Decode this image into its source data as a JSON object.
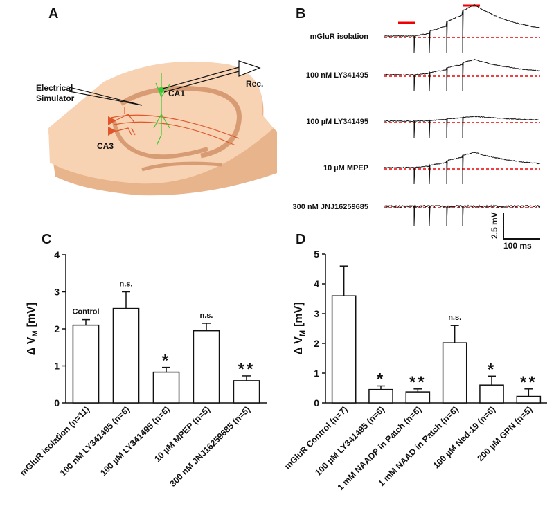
{
  "panel_labels": [
    "A",
    "B",
    "C",
    "D"
  ],
  "panel_a": {
    "stimulator": [
      "Electrical",
      "Simulator"
    ],
    "recording": "Rec.",
    "regions": [
      "CA1",
      "CA3"
    ]
  },
  "panel_b": {
    "traces": [
      "mGluR isolation",
      "100 nM LY341495",
      "100 µM LY341495",
      "10 µM MPEP",
      "300 nM JNJ16259685"
    ],
    "scale_bar": [
      "2.5 mV",
      "100 ms"
    ]
  },
  "chart_data": [
    {
      "type": "bar",
      "ylabel": [
        "Δ V",
        "M",
        "[mV]"
      ],
      "categories": [
        "mGluR isolation (n=11)",
        "100 nM LY341495 (n=6)",
        "100 µM LY341495 (n=6)",
        "10 µM MPEP (n=5)",
        "300 nM JNJ16259685 (n=5)"
      ],
      "values": [
        2.1,
        2.55,
        0.83,
        1.95,
        0.6
      ],
      "errors": [
        0.15,
        0.45,
        0.13,
        0.2,
        0.13
      ],
      "annotations": [
        "Control",
        "n.s.",
        "*",
        "n.s.",
        "**"
      ],
      "color": "#ffffff",
      "ylim": [
        0,
        4
      ],
      "yticks": [
        0,
        1,
        2,
        3,
        4
      ]
    },
    {
      "type": "bar",
      "ylabel": [
        "Δ V",
        "M",
        "[mV]"
      ],
      "categories": [
        "mGluR Control (n=7)",
        "100 µM LY341495 (n=6)",
        "1 mM NAADP in Patch (n=6)",
        "1 mM NAAD in Patch (n=6)",
        "100 µM Ned-19 (n=6)",
        "200 µM GPN (n=5)"
      ],
      "values": [
        3.6,
        0.45,
        0.37,
        2.02,
        0.6,
        0.22
      ],
      "errors": [
        1.0,
        0.12,
        0.1,
        0.58,
        0.3,
        0.25
      ],
      "annotations": [
        null,
        "*",
        "**",
        "n.s.",
        "*",
        "**"
      ],
      "color": "#ffffff",
      "ylim": [
        0,
        5
      ],
      "yticks": [
        0,
        1,
        2,
        3,
        4,
        5
      ]
    }
  ]
}
